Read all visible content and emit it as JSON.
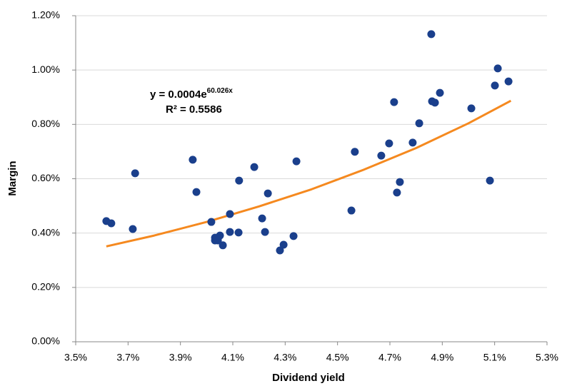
{
  "chart_data": {
    "type": "scatter",
    "x_label": "Dividend yield",
    "y_label": "Margin",
    "xlim": [
      3.5,
      5.3
    ],
    "ylim": [
      0,
      1.2
    ],
    "xticks": [
      {
        "value": 3.5,
        "label": "3.5%"
      },
      {
        "value": 3.7,
        "label": "3.7%"
      },
      {
        "value": 3.9,
        "label": "3.9%"
      },
      {
        "value": 4.1,
        "label": "4.1%"
      },
      {
        "value": 4.3,
        "label": "4.3%"
      },
      {
        "value": 4.5,
        "label": "4.5%"
      },
      {
        "value": 4.7,
        "label": "4.7%"
      },
      {
        "value": 4.9,
        "label": "4.9%"
      },
      {
        "value": 5.1,
        "label": "5.1%"
      },
      {
        "value": 5.3,
        "label": "5.3%"
      }
    ],
    "yticks": [
      {
        "value": 0,
        "label": "0.00%"
      },
      {
        "value": 0.2,
        "label": "0.20%"
      },
      {
        "value": 0.4,
        "label": "0.40%"
      },
      {
        "value": 0.6,
        "label": "0.60%"
      },
      {
        "value": 0.8,
        "label": "0.80%"
      },
      {
        "value": 1.0,
        "label": "1.00%"
      },
      {
        "value": 1.2,
        "label": "1.20%"
      }
    ],
    "grid": true,
    "color": "#1a3f8c",
    "x": [
      3.617,
      3.636,
      3.718,
      3.727,
      3.947,
      3.961,
      4.018,
      4.032,
      4.032,
      4.043,
      4.051,
      4.062,
      4.089,
      4.089,
      4.122,
      4.124,
      4.182,
      4.212,
      4.223,
      4.234,
      4.28,
      4.294,
      4.332,
      4.343,
      4.553,
      4.566,
      4.667,
      4.697,
      4.716,
      4.727,
      4.738,
      4.787,
      4.812,
      4.858,
      4.861,
      4.872,
      4.891,
      5.011,
      5.082,
      5.101,
      5.112,
      5.153
    ],
    "values": [
      0.444,
      0.436,
      0.415,
      0.62,
      0.67,
      0.551,
      0.441,
      0.383,
      0.373,
      0.373,
      0.391,
      0.355,
      0.47,
      0.404,
      0.402,
      0.593,
      0.643,
      0.454,
      0.404,
      0.546,
      0.336,
      0.357,
      0.389,
      0.664,
      0.483,
      0.699,
      0.685,
      0.73,
      0.882,
      0.549,
      0.588,
      0.733,
      0.804,
      1.132,
      0.885,
      0.88,
      0.916,
      0.859,
      0.593,
      0.943,
      1.006,
      0.958
    ],
    "trendline": {
      "color": "#f5891f",
      "x": [
        3.617,
        3.8,
        4.0,
        4.2,
        4.4,
        4.6,
        4.8,
        5.0,
        5.162
      ],
      "values": [
        0.351,
        0.391,
        0.441,
        0.498,
        0.561,
        0.633,
        0.713,
        0.804,
        0.887
      ]
    },
    "equation": "y = 0.0004e",
    "equation_exponent": "60.026x",
    "r_squared": "R² = 0.5586"
  }
}
